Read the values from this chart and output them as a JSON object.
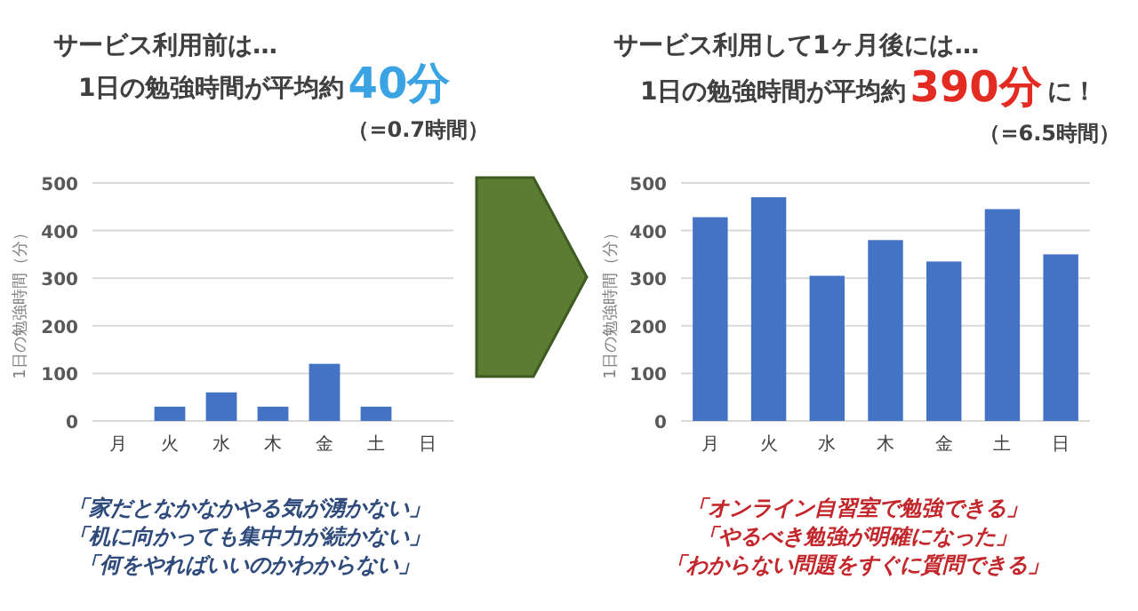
{
  "chart_data": [
    {
      "type": "bar",
      "title": "サービス利用前は…",
      "subtitle": "1日の勉強時間が平均約",
      "annotations": [
        "40分",
        "（=0.7時間）",
        "「家だとなかなかやる気が湧かない」",
        "「机に向かっても集中力が続かない」",
        "「何をやればいいのかわからない」"
      ],
      "ylabel": "1日の勉強時間（分）",
      "categories": [
        "月",
        "火",
        "水",
        "木",
        "金",
        "土",
        "日"
      ],
      "values": [
        0,
        30,
        60,
        30,
        120,
        30,
        0
      ],
      "color": "#4472c4",
      "ylim": [
        0,
        500
      ],
      "yticks": [
        0,
        100,
        200,
        300,
        400,
        500
      ],
      "grid": "y"
    },
    {
      "type": "bar",
      "title": "サービス利用して1ヶ月後には…",
      "subtitle": "1日の勉強時間が平均約",
      "annotations": [
        "390分",
        "に！",
        "（=6.5時間）",
        "「オンライン自習室で勉強できる」",
        "「やるべき勉強が明確になった」",
        "「わからない問題をすぐに質問できる」"
      ],
      "ylabel": "1日の勉強時間（分）",
      "categories": [
        "月",
        "火",
        "水",
        "木",
        "金",
        "土",
        "日"
      ],
      "values": [
        428,
        470,
        305,
        380,
        335,
        445,
        350
      ],
      "color": "#4472c4",
      "ylim": [
        0,
        500
      ],
      "yticks": [
        0,
        100,
        200,
        300,
        400,
        500
      ],
      "grid": "y"
    }
  ]
}
